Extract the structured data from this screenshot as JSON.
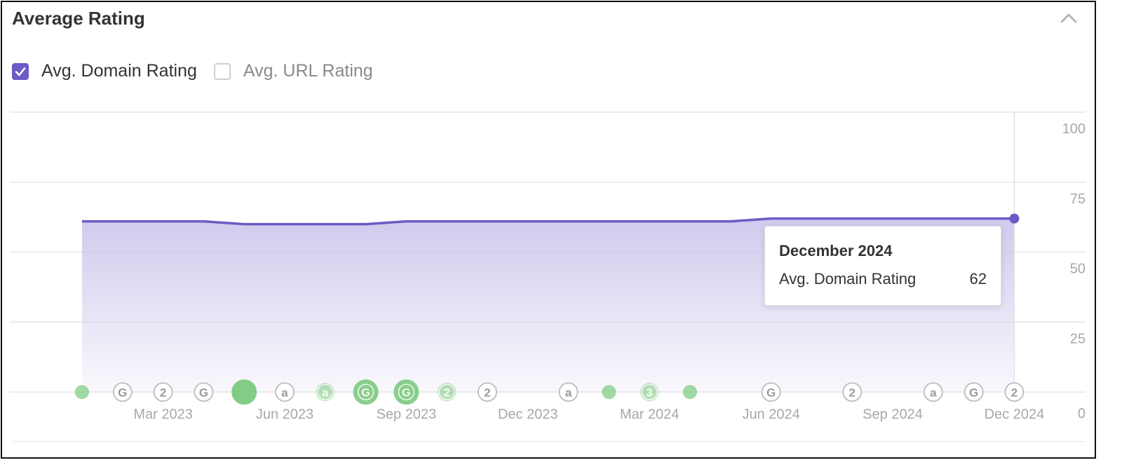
{
  "panel": {
    "title": "Average Rating",
    "collapse_icon": "chevron-up-icon"
  },
  "toggles": [
    {
      "label": "Avg. Domain Rating",
      "checked": true
    },
    {
      "label": "Avg. URL Rating",
      "checked": false
    }
  ],
  "colors": {
    "line": "#6b5bc4",
    "fill": "#cfc7ec",
    "event_green": "#7cc97e",
    "event_badge_border": "#bdbdbd",
    "grid": "#e6e6e6",
    "text_muted": "#a8a8a8"
  },
  "chart_data": {
    "type": "area",
    "title": "",
    "series": [
      {
        "name": "Avg. Domain Rating",
        "points": [
          [
            "2023-01",
            61
          ],
          [
            "2023-02",
            61
          ],
          [
            "2023-03",
            61
          ],
          [
            "2023-04",
            61
          ],
          [
            "2023-05",
            60
          ],
          [
            "2023-06",
            60
          ],
          [
            "2023-07",
            60
          ],
          [
            "2023-08",
            60
          ],
          [
            "2023-09",
            61
          ],
          [
            "2023-10",
            61
          ],
          [
            "2023-11",
            61
          ],
          [
            "2023-12",
            61
          ],
          [
            "2024-01",
            61
          ],
          [
            "2024-02",
            61
          ],
          [
            "2024-03",
            61
          ],
          [
            "2024-04",
            61
          ],
          [
            "2024-05",
            61
          ],
          [
            "2024-06",
            62
          ],
          [
            "2024-07",
            62
          ],
          [
            "2024-08",
            62
          ],
          [
            "2024-09",
            62
          ],
          [
            "2024-10",
            62
          ],
          [
            "2024-11",
            62
          ],
          [
            "2024-12",
            62
          ]
        ]
      }
    ],
    "x_ticks": [
      "Mar 2023",
      "Jun 2023",
      "Sep 2023",
      "Dec 2023",
      "Mar 2024",
      "Jun 2024",
      "Sep 2024",
      "Dec 2024"
    ],
    "x_tick_dates": [
      "2023-03",
      "2023-06",
      "2023-09",
      "2023-12",
      "2024-03",
      "2024-06",
      "2024-09",
      "2024-12"
    ],
    "y_ticks": [
      0,
      25,
      50,
      75,
      100
    ],
    "ylim": [
      0,
      100
    ],
    "grid": true,
    "y_axis_side": "right",
    "tooltip": {
      "title": "December 2024",
      "label": "Avg. Domain Rating",
      "value": "62"
    },
    "events": [
      {
        "date": "2023-01",
        "kind": "dot",
        "size": "small"
      },
      {
        "date": "2023-02",
        "kind": "badge",
        "text": "G"
      },
      {
        "date": "2023-03",
        "kind": "badge",
        "text": "2"
      },
      {
        "date": "2023-04",
        "kind": "badge",
        "text": "G"
      },
      {
        "date": "2023-05",
        "kind": "dot",
        "size": "large"
      },
      {
        "date": "2023-06",
        "kind": "badge",
        "text": "a"
      },
      {
        "date": "2023-07",
        "kind": "green-badge",
        "text": "a",
        "size": "small"
      },
      {
        "date": "2023-08",
        "kind": "green-badge",
        "text": "G",
        "size": "large"
      },
      {
        "date": "2023-09",
        "kind": "green-badge",
        "text": "G",
        "size": "large"
      },
      {
        "date": "2023-10",
        "kind": "green-badge",
        "text": "2",
        "size": "small"
      },
      {
        "date": "2023-11",
        "kind": "badge",
        "text": "2"
      },
      {
        "date": "2024-01",
        "kind": "badge",
        "text": "a"
      },
      {
        "date": "2024-02",
        "kind": "dot",
        "size": "small"
      },
      {
        "date": "2024-03",
        "kind": "green-badge",
        "text": "3",
        "size": "small"
      },
      {
        "date": "2024-04",
        "kind": "dot",
        "size": "small"
      },
      {
        "date": "2024-06",
        "kind": "badge",
        "text": "G"
      },
      {
        "date": "2024-08",
        "kind": "badge",
        "text": "2"
      },
      {
        "date": "2024-10",
        "kind": "badge",
        "text": "a"
      },
      {
        "date": "2024-11",
        "kind": "badge",
        "text": "G"
      },
      {
        "date": "2024-12",
        "kind": "badge",
        "text": "2"
      }
    ]
  }
}
